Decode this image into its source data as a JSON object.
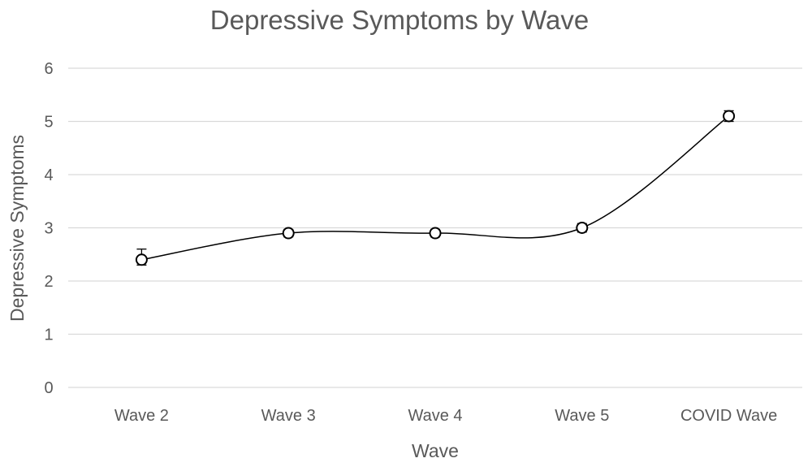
{
  "chart_data": {
    "type": "line",
    "title": "Depressive Symptoms by Wave",
    "xlabel": "Wave",
    "ylabel": "Depressive Symptoms",
    "categories": [
      "Wave 2",
      "Wave 3",
      "Wave 4",
      "Wave 5",
      "COVID Wave"
    ],
    "series": [
      {
        "values": [
          2.4,
          2.9,
          2.9,
          3.0,
          5.1
        ],
        "error_upper": [
          0.2,
          0.07,
          0.07,
          0.08,
          0.1
        ],
        "error_lower": [
          0.1,
          0.07,
          0.07,
          0.08,
          0.1
        ],
        "color": "#000000",
        "smooth": true,
        "marker": "open-circle"
      }
    ],
    "ylim": [
      0,
      6
    ],
    "yticks": [
      "0",
      "1",
      "2",
      "3",
      "4",
      "5",
      "6"
    ],
    "grid": true,
    "legend": "none",
    "colors": {
      "text": "#595959",
      "grid": "#d9d9d9",
      "line": "#000000"
    }
  }
}
